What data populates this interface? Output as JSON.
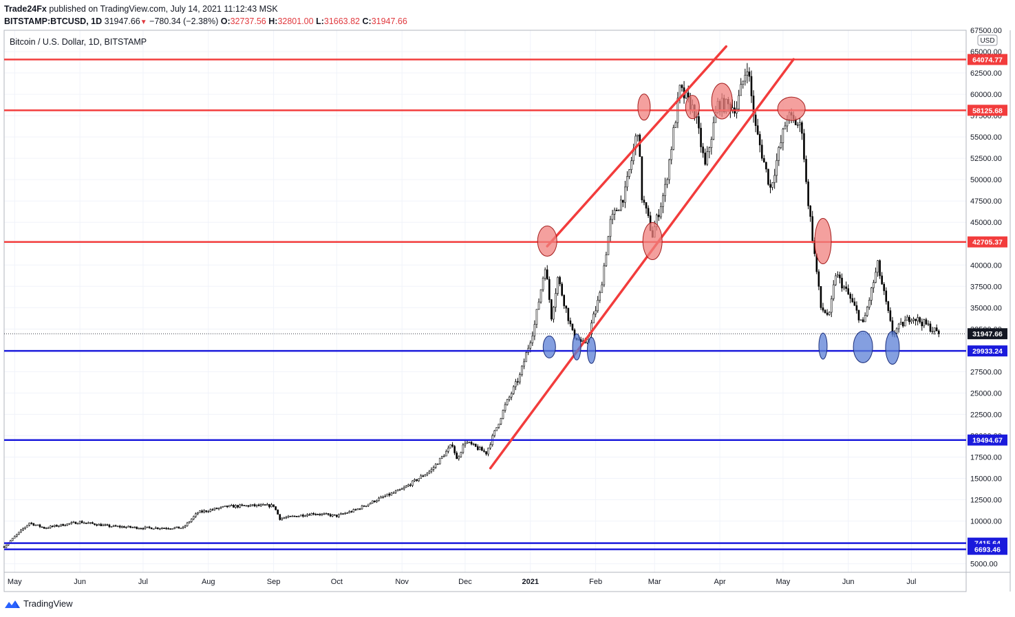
{
  "header": {
    "publisher_name": "Trade24Fx",
    "publisher_suffix": "published on TradingView.com, July 14, 2021 11:12:43 MSK",
    "symbol": "BITSTAMP:BTCUSD, 1D",
    "last": "31947.66",
    "change": "−780.34 (−2.38%)",
    "o_label": "O:",
    "o": "32737.56",
    "h_label": "H:",
    "h": "32801.00",
    "l_label": "L:",
    "l": "31663.82",
    "c_label": "C:",
    "c": "31947.66"
  },
  "footer": {
    "brand": "TradingView"
  },
  "colors": {
    "resistance": "#f23c3c",
    "support": "#1a1adc",
    "red_marker": "#f0807e",
    "blue_marker": "#5b7fd6",
    "candle": "#000000"
  },
  "chart_data": {
    "type": "candlestick",
    "title": "Bitcoin / U.S. Dollar, 1D, BITSTAMP",
    "currency": "USD",
    "ylim": [
      4000,
      67500
    ],
    "y_ticks": [
      "5000.00",
      "7500.00",
      "10000.00",
      "12500.00",
      "15000.00",
      "17500.00",
      "20000.00",
      "22500.00",
      "25000.00",
      "27500.00",
      "30000.00",
      "32500.00",
      "35000.00",
      "37500.00",
      "40000.00",
      "42500.00",
      "45000.00",
      "47500.00",
      "50000.00",
      "52500.00",
      "55000.00",
      "57500.00",
      "60000.00",
      "62500.00",
      "65000.00",
      "67500.00"
    ],
    "x_ticks": [
      "May",
      "Jun",
      "Jul",
      "Aug",
      "Sep",
      "Oct",
      "Nov",
      "Dec",
      "2021",
      "Feb",
      "Mar",
      "Apr",
      "May",
      "Jun",
      "Jul"
    ],
    "x_range": [
      "2020-04-26",
      "2021-07-27"
    ],
    "x_tick_dates": [
      "2020-05-01",
      "2020-06-01",
      "2020-07-01",
      "2020-08-01",
      "2020-09-01",
      "2020-10-01",
      "2020-11-01",
      "2020-12-01",
      "2021-01-01",
      "2021-02-01",
      "2021-03-01",
      "2021-04-01",
      "2021-05-01",
      "2021-06-01",
      "2021-07-01"
    ],
    "price_path": [
      [
        "2020-04-26",
        7000
      ],
      [
        "2020-05-08",
        9800
      ],
      [
        "2020-05-15",
        9200
      ],
      [
        "2020-06-01",
        9900
      ],
      [
        "2020-06-15",
        9400
      ],
      [
        "2020-07-01",
        9200
      ],
      [
        "2020-07-20",
        9200
      ],
      [
        "2020-07-27",
        11000
      ],
      [
        "2020-08-10",
        11700
      ],
      [
        "2020-08-20",
        11800
      ],
      [
        "2020-09-01",
        11800
      ],
      [
        "2020-09-04",
        10300
      ],
      [
        "2020-09-20",
        10900
      ],
      [
        "2020-10-01",
        10600
      ],
      [
        "2020-10-10",
        11300
      ],
      [
        "2020-10-20",
        12500
      ],
      [
        "2020-11-01",
        13700
      ],
      [
        "2020-11-15",
        16000
      ],
      [
        "2020-11-25",
        19000
      ],
      [
        "2020-11-27",
        17200
      ],
      [
        "2020-12-01",
        19300
      ],
      [
        "2020-12-11",
        18000
      ],
      [
        "2020-12-16",
        21000
      ],
      [
        "2020-12-20",
        23500
      ],
      [
        "2020-12-27",
        27000
      ],
      [
        "2021-01-03",
        33000
      ],
      [
        "2021-01-08",
        40000
      ],
      [
        "2021-01-11",
        34000
      ],
      [
        "2021-01-14",
        38500
      ],
      [
        "2021-01-21",
        32000
      ],
      [
        "2021-01-27",
        30500
      ],
      [
        "2021-02-03",
        36500
      ],
      [
        "2021-02-08",
        45000
      ],
      [
        "2021-02-15",
        48500
      ],
      [
        "2021-02-21",
        56000
      ],
      [
        "2021-02-23",
        48000
      ],
      [
        "2021-02-28",
        43500
      ],
      [
        "2021-03-06",
        49000
      ],
      [
        "2021-03-13",
        60500
      ],
      [
        "2021-03-20",
        58000
      ],
      [
        "2021-03-25",
        51500
      ],
      [
        "2021-03-31",
        58800
      ],
      [
        "2021-04-09",
        58500
      ],
      [
        "2021-04-14",
        63500
      ],
      [
        "2021-04-18",
        56000
      ],
      [
        "2021-04-25",
        49000
      ],
      [
        "2021-05-03",
        57500
      ],
      [
        "2021-05-10",
        56000
      ],
      [
        "2021-05-12",
        49500
      ],
      [
        "2021-05-19",
        35000
      ],
      [
        "2021-05-23",
        34000
      ],
      [
        "2021-05-26",
        39000
      ],
      [
        "2021-06-01",
        36500
      ],
      [
        "2021-06-08",
        33000
      ],
      [
        "2021-06-15",
        40000
      ],
      [
        "2021-06-22",
        32000
      ],
      [
        "2021-07-01",
        34000
      ],
      [
        "2021-07-08",
        33000
      ],
      [
        "2021-07-14",
        31947.66
      ]
    ],
    "annotations": {
      "horizontal_levels": [
        {
          "label": "64074.77",
          "price": 64074.77,
          "color": "red"
        },
        {
          "label": "58125.68",
          "price": 58125.68,
          "color": "red"
        },
        {
          "label": "42705.37",
          "price": 42705.37,
          "color": "red"
        },
        {
          "label": "29933.24",
          "price": 29933.24,
          "color": "blue"
        },
        {
          "label": "19494.67",
          "price": 19494.67,
          "color": "blue"
        },
        {
          "label": "7415.64",
          "price": 7415.64,
          "color": "blue"
        },
        {
          "label": "6693.46",
          "price": 6693.46,
          "color": "blue"
        }
      ],
      "current_price": {
        "label": "31947.66",
        "price": 31947.66
      },
      "channel_lines": [
        [
          [
            "2021-01-09",
            42200
          ],
          [
            "2021-04-04",
            65600
          ]
        ],
        [
          [
            "2020-12-13",
            16200
          ],
          [
            "2021-05-06",
            64100
          ]
        ]
      ],
      "red_markers": [
        [
          "2021-01-09",
          42800
        ],
        [
          "2021-02-24",
          58500
        ],
        [
          "2021-02-28",
          42800
        ],
        [
          "2021-03-19",
          58500
        ],
        [
          "2021-04-02",
          59200
        ],
        [
          "2021-05-05",
          58300
        ],
        [
          "2021-05-20",
          42800
        ]
      ],
      "blue_markers": [
        [
          "2021-01-10",
          30400
        ],
        [
          "2021-01-23",
          30400
        ],
        [
          "2021-01-30",
          30000
        ],
        [
          "2021-05-20",
          30500
        ],
        [
          "2021-06-08",
          30400
        ],
        [
          "2021-06-22",
          30300
        ]
      ]
    }
  }
}
